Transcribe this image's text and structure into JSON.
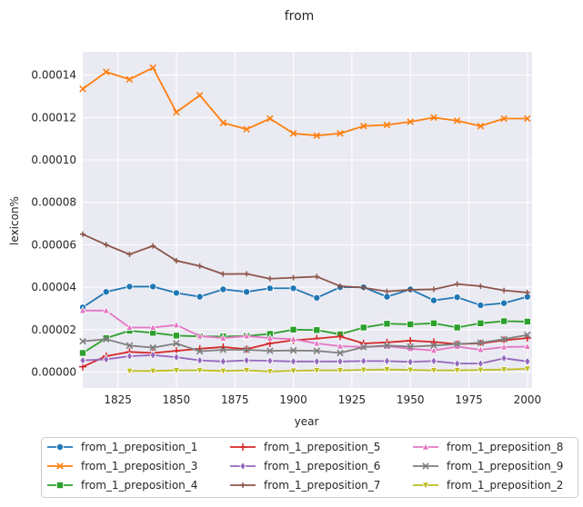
{
  "chart_data": {
    "type": "line",
    "title": "from",
    "xlabel": "year",
    "ylabel": "lexicon%",
    "xlim": [
      1810,
      2002
    ],
    "ylim": [
      -7.5e-06,
      0.000151
    ],
    "x_ticks": [
      1825,
      1850,
      1875,
      1900,
      1925,
      1950,
      1975,
      2000
    ],
    "x_tick_labels": [
      "1825",
      "1850",
      "1875",
      "1900",
      "1925",
      "1950",
      "1975",
      "2000"
    ],
    "y_ticks": [
      0,
      2e-05,
      4e-05,
      6e-05,
      8e-05,
      0.0001,
      0.00012,
      0.00014
    ],
    "y_tick_labels": [
      "0.00000",
      "0.00002",
      "0.00004",
      "0.00006",
      "0.00008",
      "0.00010",
      "0.00012",
      "0.00014"
    ],
    "grid": true,
    "legend_position": "bottom-center",
    "series": [
      {
        "name": "from_1_preposition_1",
        "color": "#1f77b4",
        "marker": "circle",
        "x": [
          1810,
          1820,
          1830,
          1840,
          1850,
          1860,
          1870,
          1880,
          1890,
          1900,
          1910,
          1920,
          1930,
          1940,
          1950,
          1960,
          1970,
          1980,
          1990,
          2000
        ],
        "y": [
          3.05e-05,
          3.78e-05,
          4.03e-05,
          4.03e-05,
          3.73e-05,
          3.55e-05,
          3.9e-05,
          3.78e-05,
          3.95e-05,
          3.95e-05,
          3.5e-05,
          4e-05,
          4e-05,
          3.55e-05,
          3.9e-05,
          3.38e-05,
          3.53e-05,
          3.15e-05,
          3.25e-05,
          3.55e-05
        ]
      },
      {
        "name": "from_1_preposition_3",
        "color": "#ff7f0e",
        "marker": "x",
        "x": [
          1810,
          1820,
          1830,
          1840,
          1850,
          1860,
          1870,
          1880,
          1890,
          1900,
          1910,
          1920,
          1930,
          1940,
          1950,
          1960,
          1970,
          1980,
          1990,
          2000
        ],
        "y": [
          0.0001335,
          0.0001415,
          0.000138,
          0.0001435,
          0.0001225,
          0.0001305,
          0.0001175,
          0.0001145,
          0.0001195,
          0.0001125,
          0.0001115,
          0.0001125,
          0.000116,
          0.0001165,
          0.000118,
          0.00012,
          0.0001185,
          0.000116,
          0.0001195,
          0.0001195
        ]
      },
      {
        "name": "from_1_preposition_4",
        "color": "#2ca02c",
        "marker": "square",
        "x": [
          1810,
          1820,
          1830,
          1840,
          1850,
          1860,
          1870,
          1880,
          1890,
          1900,
          1910,
          1920,
          1930,
          1940,
          1950,
          1960,
          1970,
          1980,
          1990,
          2000
        ],
        "y": [
          9e-06,
          1.6e-05,
          1.95e-05,
          1.85e-05,
          1.72e-05,
          1.68e-05,
          1.68e-05,
          1.7e-05,
          1.8e-05,
          2e-05,
          1.98e-05,
          1.78e-05,
          2.1e-05,
          2.28e-05,
          2.25e-05,
          2.3e-05,
          2.1e-05,
          2.3e-05,
          2.4e-05,
          2.38e-05
        ]
      },
      {
        "name": "from_1_preposition_5",
        "color": "#d62728",
        "marker": "plus",
        "x": [
          1810,
          1820,
          1830,
          1840,
          1850,
          1860,
          1870,
          1880,
          1890,
          1900,
          1910,
          1920,
          1930,
          1940,
          1950,
          1960,
          1970,
          1980,
          1990,
          2000
        ],
        "y": [
          2.5e-06,
          7.5e-06,
          9.5e-06,
          9e-06,
          1e-05,
          1.1e-05,
          1.18e-05,
          1.08e-05,
          1.35e-05,
          1.5e-05,
          1.58e-05,
          1.68e-05,
          1.35e-05,
          1.4e-05,
          1.48e-05,
          1.42e-05,
          1.32e-05,
          1.35e-05,
          1.5e-05,
          1.6e-05
        ]
      },
      {
        "name": "from_1_preposition_6",
        "color": "#9467bd",
        "marker": "diamond",
        "x": [
          1810,
          1820,
          1830,
          1840,
          1850,
          1860,
          1870,
          1880,
          1890,
          1900,
          1910,
          1920,
          1930,
          1940,
          1950,
          1960,
          1970,
          1980,
          1990,
          2000
        ],
        "y": [
          5.5e-06,
          6e-06,
          7.5e-06,
          8e-06,
          7e-06,
          5.5e-06,
          5e-06,
          5.5e-06,
          5.3e-06,
          5e-06,
          5e-06,
          5e-06,
          5.2e-06,
          5.2e-06,
          4.8e-06,
          5.2e-06,
          4e-06,
          4e-06,
          6.5e-06,
          5e-06
        ]
      },
      {
        "name": "from_1_preposition_7",
        "color": "#8c564b",
        "marker": "small-plus",
        "x": [
          1810,
          1820,
          1830,
          1840,
          1850,
          1860,
          1870,
          1880,
          1890,
          1900,
          1910,
          1920,
          1930,
          1940,
          1950,
          1960,
          1970,
          1980,
          1990,
          2000
        ],
        "y": [
          6.5e-05,
          6e-05,
          5.55e-05,
          5.95e-05,
          5.25e-05,
          5e-05,
          4.62e-05,
          4.63e-05,
          4.4e-05,
          4.45e-05,
          4.5e-05,
          4.05e-05,
          3.98e-05,
          3.8e-05,
          3.88e-05,
          3.9e-05,
          4.15e-05,
          4.05e-05,
          3.85e-05,
          3.75e-05
        ]
      },
      {
        "name": "from_1_preposition_8",
        "color": "#e377c2",
        "marker": "triangle-up",
        "x": [
          1810,
          1820,
          1830,
          1840,
          1850,
          1860,
          1870,
          1880,
          1890,
          1900,
          1910,
          1920,
          1930,
          1940,
          1950,
          1960,
          1970,
          1980,
          1990,
          2000
        ],
        "y": [
          2.9e-05,
          2.9e-05,
          2.1e-05,
          2.1e-05,
          2.22e-05,
          1.7e-05,
          1.6e-05,
          1.7e-05,
          1.6e-05,
          1.55e-05,
          1.35e-05,
          1.22e-05,
          1.18e-05,
          1.22e-05,
          1.1e-05,
          1.02e-05,
          1.2e-05,
          1.05e-05,
          1.18e-05,
          1.2e-05
        ]
      },
      {
        "name": "from_1_preposition_9",
        "color": "#7f7f7f",
        "marker": "x",
        "x": [
          1810,
          1820,
          1830,
          1840,
          1850,
          1860,
          1870,
          1880,
          1890,
          1900,
          1910,
          1920,
          1930,
          1940,
          1950,
          1960,
          1970,
          1980,
          1990,
          2000
        ],
        "y": [
          1.45e-05,
          1.55e-05,
          1.25e-05,
          1.15e-05,
          1.35e-05,
          9.8e-06,
          1.05e-05,
          1.05e-05,
          1e-05,
          1.02e-05,
          1e-05,
          9e-06,
          1.18e-05,
          1.25e-05,
          1.2e-05,
          1.25e-05,
          1.32e-05,
          1.38e-05,
          1.55e-05,
          1.75e-05
        ]
      },
      {
        "name": "from_1_preposition_2",
        "color": "#bcbd22",
        "marker": "triangle-down",
        "x": [
          1830,
          1840,
          1850,
          1860,
          1870,
          1880,
          1890,
          1900,
          1910,
          1920,
          1930,
          1940,
          1950,
          1960,
          1970,
          1980,
          1990,
          2000
        ],
        "y": [
          5e-07,
          5e-07,
          8e-07,
          8e-07,
          5e-07,
          8e-07,
          3e-07,
          6e-07,
          8e-07,
          8e-07,
          1e-06,
          1.2e-06,
          1e-06,
          8e-07,
          8e-07,
          1e-06,
          1.2e-06,
          1.5e-06
        ]
      }
    ]
  }
}
